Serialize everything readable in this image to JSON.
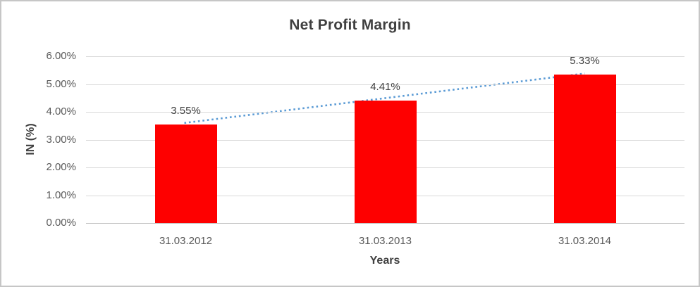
{
  "chart_data": {
    "type": "bar",
    "title": "Net Profit Margin",
    "categories": [
      "31.03.2012",
      "31.03.2013",
      "31.03.2014"
    ],
    "values": [
      3.55,
      4.41,
      5.33
    ],
    "data_labels": [
      "3.55%",
      "4.41%",
      "5.33%"
    ],
    "xlabel": "Years",
    "ylabel": "IN (%)",
    "ylim": [
      0,
      6
    ],
    "y_tick_step": 1,
    "y_tick_labels": [
      "0.00%",
      "1.00%",
      "2.00%",
      "3.00%",
      "4.00%",
      "5.00%",
      "6.00%"
    ],
    "grid": true,
    "legend": "none",
    "trendline": {
      "type": "linear",
      "style": "dotted",
      "spans": "first-to-last-category",
      "color": "#5b9bd5"
    },
    "colors": {
      "bar_fill": "#fe0000",
      "trendline": "#5b9bd5",
      "gridline": "#d9d9d9",
      "axis_line": "#bfbfbf",
      "title_text": "#404040",
      "tick_text": "#595959",
      "frame_border": "#c6c6c6"
    }
  }
}
